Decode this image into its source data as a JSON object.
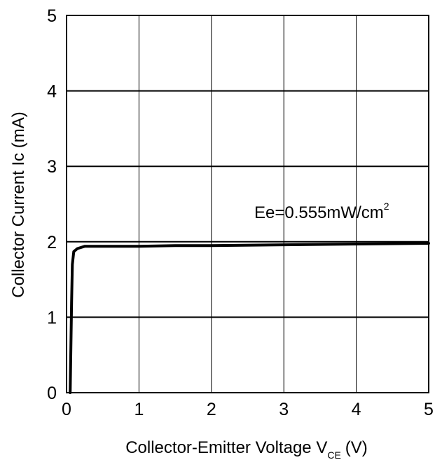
{
  "chart_data": {
    "type": "line",
    "title": "",
    "xlabel": "Collector-Emitter Voltage V",
    "xlabel_subscript": "CE",
    "xlabel_unit": "(V)",
    "ylabel": "Collector Current Ic (mA)",
    "xlim": [
      0,
      5
    ],
    "ylim": [
      0,
      5
    ],
    "x_ticks": [
      "0",
      "1",
      "2",
      "3",
      "4",
      "5"
    ],
    "y_ticks": [
      "0",
      "1",
      "2",
      "3",
      "4",
      "5"
    ],
    "grid": true,
    "annotation": {
      "text": "Ee=0.555mW/cm",
      "superscript": "2"
    },
    "series": [
      {
        "x": [
          0.05,
          0.06,
          0.07,
          0.08,
          0.1,
          0.15,
          0.25,
          0.5,
          1.0,
          1.5,
          2.0,
          3.0,
          4.0,
          5.0
        ],
        "y": [
          0.0,
          0.6,
          1.2,
          1.7,
          1.87,
          1.91,
          1.94,
          1.94,
          1.94,
          1.95,
          1.95,
          1.96,
          1.97,
          1.98
        ]
      }
    ]
  }
}
